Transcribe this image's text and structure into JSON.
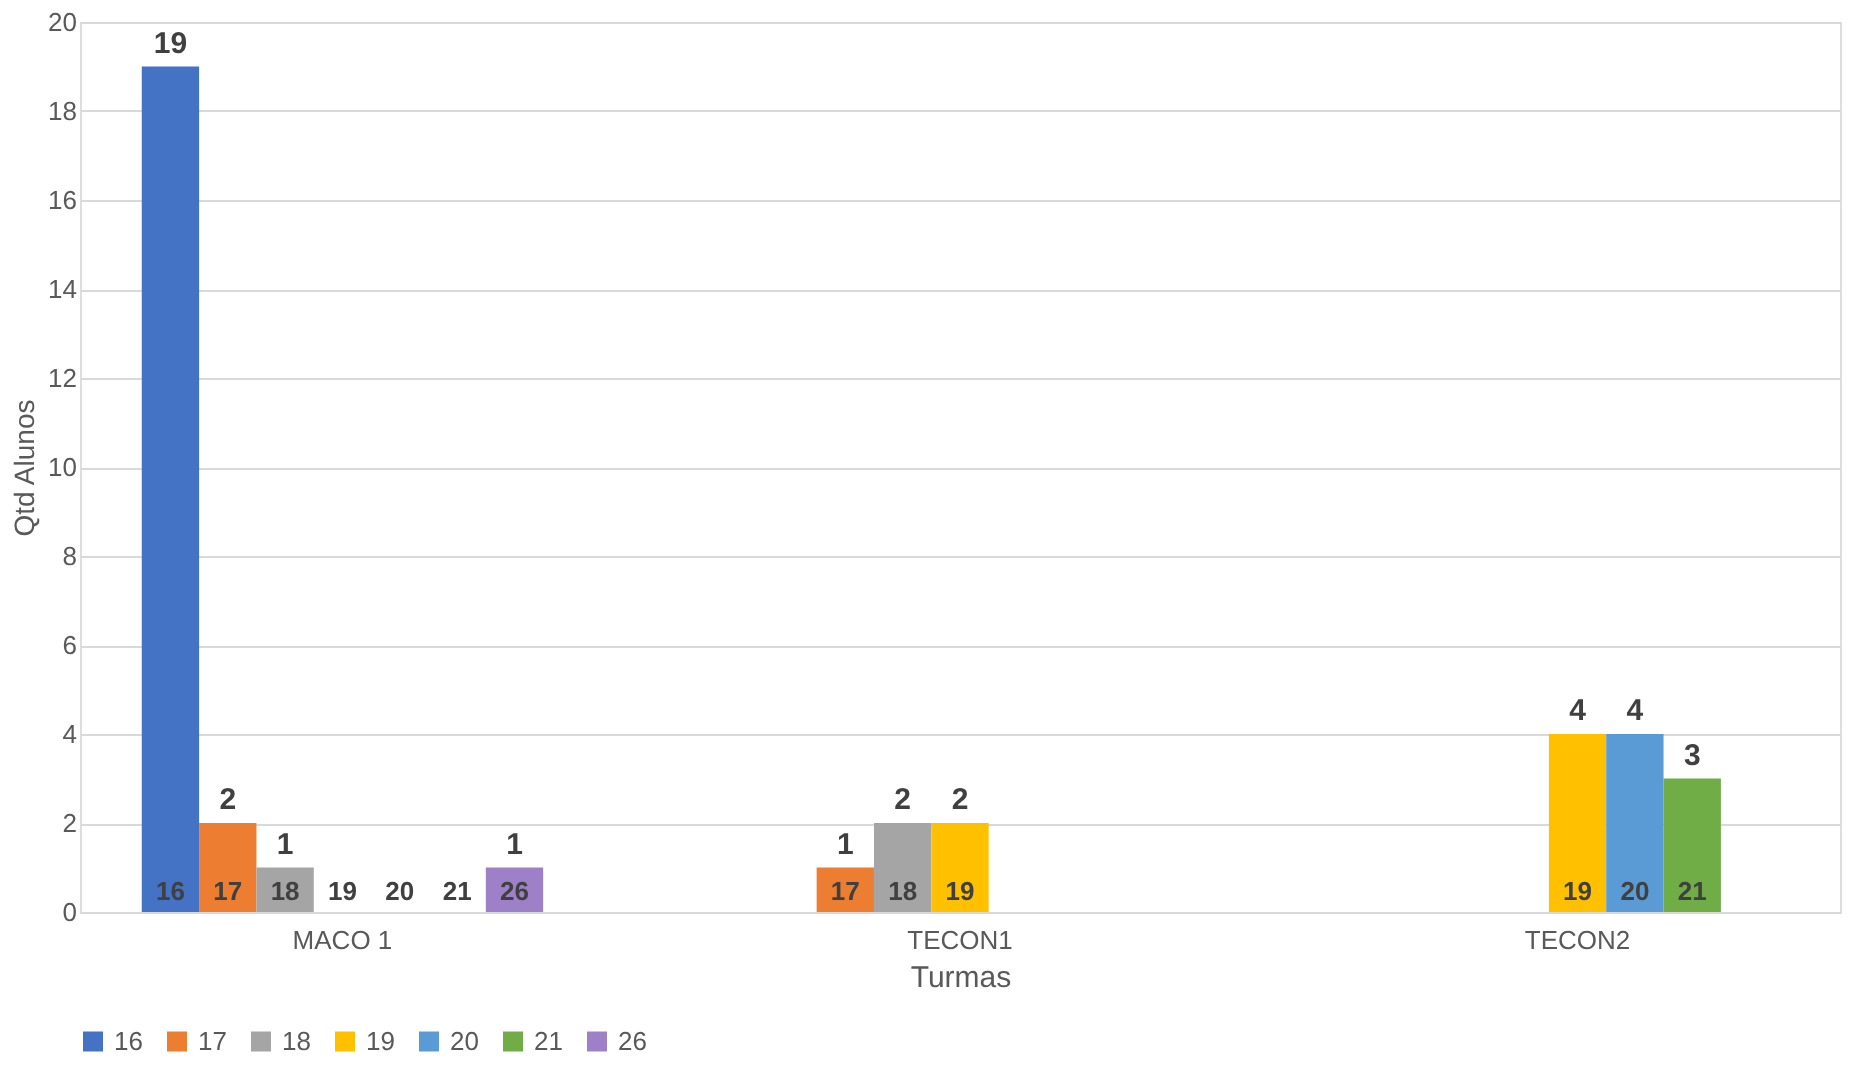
{
  "chart_data": {
    "type": "bar",
    "xlabel": "Turmas",
    "ylabel": "Qtd Alunos",
    "categories": [
      "MACO 1",
      "TECON1",
      "TECON2"
    ],
    "series": [
      {
        "name": "16",
        "color": "#4472c4",
        "values": [
          19,
          null,
          null
        ],
        "value_labels": [
          "19",
          null,
          null
        ]
      },
      {
        "name": "17",
        "color": "#ed7d31",
        "values": [
          2,
          1,
          null
        ],
        "value_labels": [
          "2",
          "1",
          null
        ]
      },
      {
        "name": "18",
        "color": "#a5a5a5",
        "values": [
          1,
          2,
          null
        ],
        "value_labels": [
          "1",
          "2",
          null
        ]
      },
      {
        "name": "19",
        "color": "#ffc000",
        "values": [
          0,
          2,
          4
        ],
        "value_labels": [
          null,
          "2",
          "4"
        ]
      },
      {
        "name": "20",
        "color": "#5b9bd5",
        "values": [
          0,
          null,
          4
        ],
        "value_labels": [
          null,
          null,
          "4"
        ]
      },
      {
        "name": "21",
        "color": "#70ad47",
        "values": [
          0,
          null,
          3
        ],
        "value_labels": [
          null,
          null,
          "3"
        ]
      },
      {
        "name": "26",
        "color": "#9e80c8",
        "values": [
          1,
          null,
          null
        ],
        "value_labels": [
          "1",
          null,
          null
        ]
      }
    ],
    "ylim": [
      0,
      20
    ],
    "yticks": [
      0,
      2,
      4,
      6,
      8,
      10,
      12,
      14,
      16,
      18,
      20
    ],
    "grid": "y",
    "legend": "bottom"
  }
}
